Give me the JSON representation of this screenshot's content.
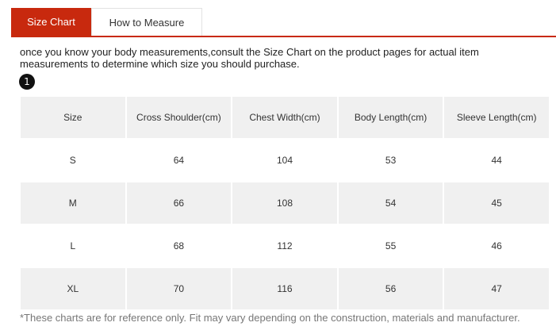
{
  "tabs": [
    {
      "label": "Size Chart",
      "active": true
    },
    {
      "label": "How to Measure",
      "active": false
    }
  ],
  "intro_text": "once you know your body measurements,consult the Size Chart on the product pages for actual item measurements to determine which size you should purchase.",
  "step_badge": "1",
  "table": {
    "headers": [
      "Size",
      "Cross Shoulder(cm)",
      "Chest Width(cm)",
      "Body Length(cm)",
      "Sleeve Length(cm)"
    ],
    "rows": [
      [
        "S",
        "64",
        "104",
        "53",
        "44"
      ],
      [
        "M",
        "66",
        "108",
        "54",
        "45"
      ],
      [
        "L",
        "68",
        "112",
        "55",
        "46"
      ],
      [
        "XL",
        "70",
        "116",
        "56",
        "47"
      ]
    ]
  },
  "footnote": "*These charts are for reference only. Fit may vary depending on the construction, materials and manufacturer.",
  "colors": {
    "accent": "#c8290e",
    "row_shade": "#f0f0f0"
  }
}
